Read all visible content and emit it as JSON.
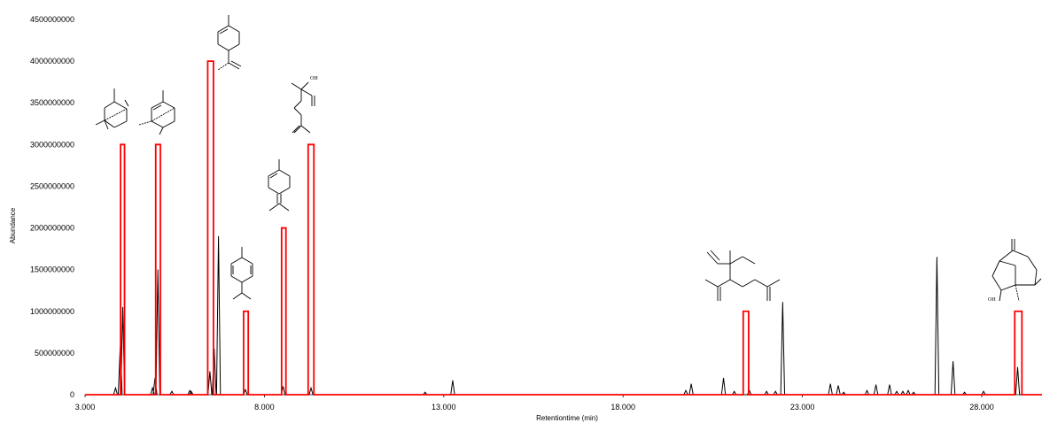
{
  "chart_data": {
    "type": "line",
    "title": "",
    "xlabel": "Retentiontime (min)",
    "ylabel": "Abundance",
    "xlim": [
      3.0,
      30.0
    ],
    "ylim": [
      0,
      4500000000
    ],
    "x_ticks": [
      3,
      8,
      13,
      18,
      23,
      28
    ],
    "x_tick_labels": [
      "3.000",
      "8.000",
      "13.000",
      "18.000",
      "23.000",
      "28.000"
    ],
    "y_ticks": [
      0,
      500000000,
      1000000000,
      1500000000,
      2000000000,
      2500000000,
      3000000000,
      3500000000,
      4000000000,
      4500000000
    ],
    "y_tick_labels": [
      "0",
      "500000000",
      "1000000000",
      "1500000000",
      "2000000000",
      "2500000000",
      "3000000000",
      "3500000000",
      "4000000000",
      "4500000000"
    ],
    "grid": false,
    "series": [
      {
        "color": "#000000",
        "style": "chromatogram",
        "peaks": [
          {
            "x": 3.85,
            "y": 80000000
          },
          {
            "x": 3.98,
            "y": 580000000
          },
          {
            "x": 4.05,
            "y": 1050000000
          },
          {
            "x": 4.88,
            "y": 80000000
          },
          {
            "x": 4.95,
            "y": 200000000
          },
          {
            "x": 5.03,
            "y": 1500000000
          },
          {
            "x": 5.42,
            "y": 40000000
          },
          {
            "x": 5.92,
            "y": 50000000
          },
          {
            "x": 5.96,
            "y": 40000000
          },
          {
            "x": 6.48,
            "y": 280000000
          },
          {
            "x": 6.6,
            "y": 550000000
          },
          {
            "x": 6.72,
            "y": 1900000000
          },
          {
            "x": 7.47,
            "y": 60000000
          },
          {
            "x": 8.52,
            "y": 100000000
          },
          {
            "x": 9.3,
            "y": 80000000
          },
          {
            "x": 12.48,
            "y": 30000000
          },
          {
            "x": 13.25,
            "y": 170000000
          },
          {
            "x": 19.75,
            "y": 50000000
          },
          {
            "x": 19.9,
            "y": 130000000
          },
          {
            "x": 20.8,
            "y": 200000000
          },
          {
            "x": 21.1,
            "y": 40000000
          },
          {
            "x": 21.52,
            "y": 50000000
          },
          {
            "x": 22.0,
            "y": 40000000
          },
          {
            "x": 22.25,
            "y": 40000000
          },
          {
            "x": 22.45,
            "y": 1110000000
          },
          {
            "x": 23.78,
            "y": 130000000
          },
          {
            "x": 24.0,
            "y": 110000000
          },
          {
            "x": 24.15,
            "y": 30000000
          },
          {
            "x": 24.8,
            "y": 50000000
          },
          {
            "x": 25.05,
            "y": 120000000
          },
          {
            "x": 25.43,
            "y": 120000000
          },
          {
            "x": 25.63,
            "y": 40000000
          },
          {
            "x": 25.8,
            "y": 40000000
          },
          {
            "x": 25.95,
            "y": 50000000
          },
          {
            "x": 26.1,
            "y": 30000000
          },
          {
            "x": 26.75,
            "y": 1650000000
          },
          {
            "x": 27.2,
            "y": 400000000
          },
          {
            "x": 27.52,
            "y": 30000000
          },
          {
            "x": 28.05,
            "y": 40000000
          },
          {
            "x": 29.0,
            "y": 330000000
          }
        ]
      },
      {
        "color": "#ff0000",
        "style": "rectangles",
        "peaks": [
          {
            "x_start": 3.99,
            "x_end": 4.1,
            "y": 3000000000
          },
          {
            "x_start": 4.97,
            "x_end": 5.1,
            "y": 3000000000
          },
          {
            "x_start": 6.42,
            "x_end": 6.58,
            "y": 4000000000
          },
          {
            "x_start": 7.42,
            "x_end": 7.55,
            "y": 1000000000
          },
          {
            "x_start": 8.48,
            "x_end": 8.6,
            "y": 2000000000
          },
          {
            "x_start": 9.22,
            "x_end": 9.38,
            "y": 3000000000
          },
          {
            "x_start": 21.35,
            "x_end": 21.5,
            "y": 1000000000
          },
          {
            "x_start": 28.92,
            "x_end": 29.12,
            "y": 1000000000
          }
        ]
      }
    ],
    "annotations": {
      "structures": [
        {
          "id": "beta-pinene",
          "near_x": 4.05
        },
        {
          "id": "alpha-pinene",
          "near_x": 5.05
        },
        {
          "id": "limonene",
          "near_x": 6.5
        },
        {
          "id": "p-cymene",
          "near_x": 7.5
        },
        {
          "id": "terpinolene",
          "near_x": 8.55
        },
        {
          "id": "linalool",
          "near_x": 9.3,
          "text": "OH"
        },
        {
          "id": "elemene",
          "near_x": 21.4
        },
        {
          "id": "guaiol",
          "near_x": 29.0,
          "text": "OH"
        }
      ]
    }
  }
}
